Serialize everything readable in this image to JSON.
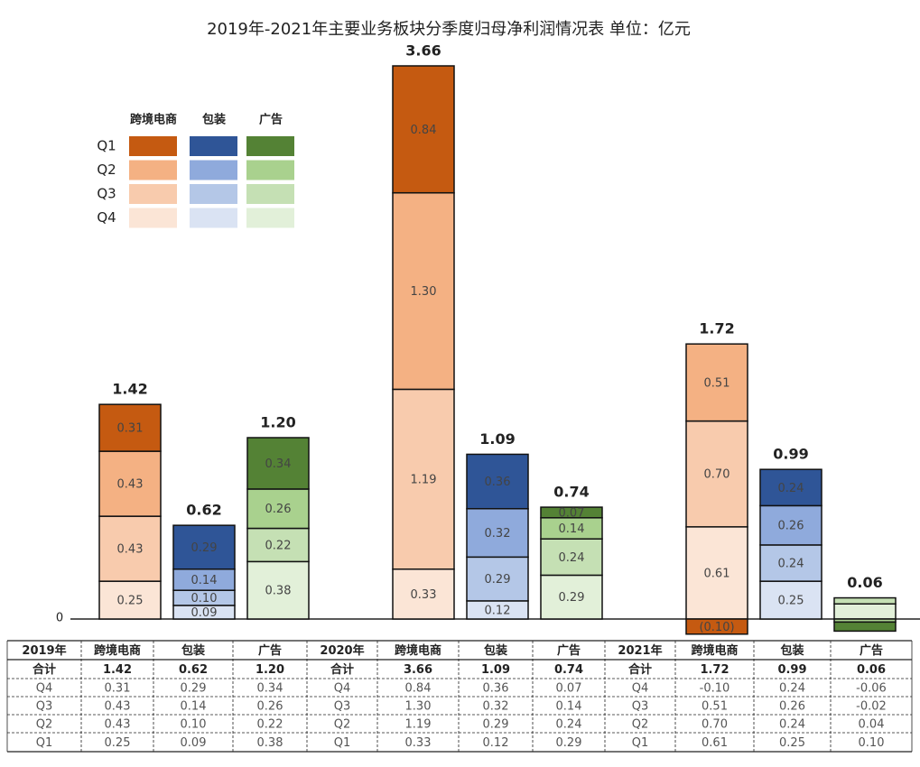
{
  "chart_data": {
    "type": "stacked_bar",
    "title": "2019年-2021年主要业务板块分季度归母净利润情况表  单位：亿元",
    "quarters": [
      "Q1",
      "Q2",
      "Q3",
      "Q4"
    ],
    "ylim": [
      0,
      3.66
    ],
    "yticks": [
      0
    ],
    "series": [
      {
        "name": "跨境电商",
        "colors": [
          "#fbe5d6",
          "#f8cbad",
          "#f4b183",
          "#c55a11"
        ],
        "values": [
          [
            0.25,
            0.43,
            0.43,
            0.31
          ],
          [
            0.33,
            1.19,
            1.3,
            0.84
          ],
          [
            0.61,
            0.7,
            0.51,
            -0.1
          ]
        ],
        "value_labels": [
          [
            "0.25",
            "0.43",
            "0.43",
            "0.31"
          ],
          [
            "0.33",
            "1.19",
            "1.30",
            "0.84"
          ],
          [
            "0.61",
            "0.70",
            "0.51",
            "(0.10)"
          ]
        ],
        "totals": [
          1.42,
          3.66,
          1.72
        ],
        "total_labels": [
          "1.42",
          "3.66",
          "1.72"
        ]
      },
      {
        "name": "包装",
        "colors": [
          "#dae3f3",
          "#b4c7e7",
          "#8faadc",
          "#2f5597"
        ],
        "values": [
          [
            0.09,
            0.1,
            0.14,
            0.29
          ],
          [
            0.12,
            0.29,
            0.32,
            0.36
          ],
          [
            0.25,
            0.24,
            0.26,
            0.24
          ]
        ],
        "value_labels": [
          [
            "0.09",
            "0.10",
            "0.14",
            "0.29"
          ],
          [
            "0.12",
            "0.29",
            "0.32",
            "0.36"
          ],
          [
            "0.25",
            "0.24",
            "0.26",
            "0.24"
          ]
        ],
        "totals": [
          0.62,
          1.09,
          0.99
        ],
        "total_labels": [
          "0.62",
          "1.09",
          "0.99"
        ]
      },
      {
        "name": "广告",
        "colors": [
          "#e2f0d9",
          "#c5e0b4",
          "#a9d18e",
          "#548235"
        ],
        "values": [
          [
            0.38,
            0.22,
            0.26,
            0.34
          ],
          [
            0.29,
            0.24,
            0.14,
            0.07
          ],
          [
            0.1,
            0.04,
            -0.02,
            -0.06
          ]
        ],
        "value_labels": [
          [
            "0.38",
            "0.22",
            "0.26",
            "0.34"
          ],
          [
            "0.29",
            "0.24",
            "0.14",
            "0.07"
          ],
          [
            null,
            null,
            null,
            null
          ]
        ],
        "totals": [
          1.2,
          0.74,
          0.06
        ],
        "total_labels": [
          "1.20",
          "0.74",
          "0.06"
        ]
      }
    ]
  },
  "table": {
    "rows": [
      [
        "2019年",
        "跨境电商",
        "包装",
        "广告",
        "2020年",
        "跨境电商",
        "包装",
        "广告",
        "2021年",
        "跨境电商",
        "包装",
        "广告"
      ],
      [
        "合计",
        "1.42",
        "0.62",
        "1.20",
        "合计",
        "3.66",
        "1.09",
        "0.74",
        "合计",
        "1.72",
        "0.99",
        "0.06"
      ],
      [
        "Q4",
        "0.31",
        "0.29",
        "0.34",
        "Q4",
        "0.84",
        "0.36",
        "0.07",
        "Q4",
        "-0.10",
        "0.24",
        "-0.06"
      ],
      [
        "Q3",
        "0.43",
        "0.14",
        "0.26",
        "Q3",
        "1.30",
        "0.32",
        "0.14",
        "Q3",
        "0.51",
        "0.26",
        "-0.02"
      ],
      [
        "Q2",
        "0.43",
        "0.10",
        "0.22",
        "Q2",
        "1.19",
        "0.29",
        "0.24",
        "Q2",
        "0.70",
        "0.24",
        "0.04"
      ],
      [
        "Q1",
        "0.25",
        "0.09",
        "0.38",
        "Q1",
        "0.33",
        "0.12",
        "0.29",
        "Q1",
        "0.61",
        "0.25",
        "0.10"
      ]
    ]
  }
}
